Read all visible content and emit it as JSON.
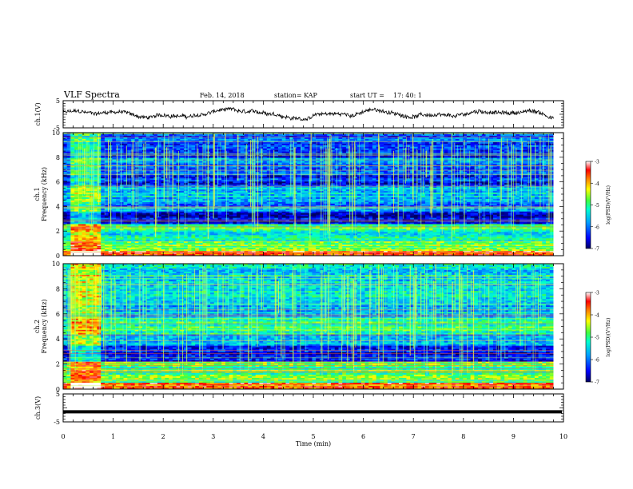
{
  "header": {
    "title": "VLF Spectra",
    "date": "Feb. 14, 2018",
    "station": "station= KAP",
    "start_label": "start  UT =",
    "start_time": "17: 40: 1"
  },
  "chart_data": [
    {
      "type": "line",
      "id": "ch1-waveform",
      "ylabel": "ch.1(V)",
      "ylim": [
        -5,
        5
      ],
      "yticks": [
        "5",
        "-5"
      ],
      "xlim": [
        0,
        10
      ],
      "note_values": "noisy waveform oscillating roughly between -1.5 and 1.5 V over 0–9.8 min",
      "series_color": "#000000"
    },
    {
      "type": "heatmap",
      "id": "ch1-spectrogram",
      "ylabel": "ch.1 Frequency (kHz)",
      "ylim": [
        0,
        10
      ],
      "yticks": [
        "0",
        "2",
        "4",
        "6",
        "8",
        "10"
      ],
      "xlim": [
        0,
        10
      ],
      "data_end_min": 9.8,
      "colorbar": {
        "label": "log(PSD)(V²/Hz)",
        "range": [
          -7,
          -3
        ],
        "ticks": [
          "-3",
          "-4",
          "-5",
          "-6",
          "-7"
        ]
      },
      "bands_khz": [
        {
          "f": [
            0.0,
            0.4
          ],
          "level": -3.5
        },
        {
          "f": [
            0.4,
            1.2
          ],
          "level": -4.6
        },
        {
          "f": [
            1.2,
            2.0
          ],
          "level": -5.2
        },
        {
          "f": [
            2.0,
            2.6
          ],
          "level": -4.9
        },
        {
          "f": [
            2.6,
            3.6
          ],
          "level": -6.6
        },
        {
          "f": [
            3.6,
            4.6
          ],
          "level": -5.9
        },
        {
          "f": [
            4.6,
            5.6
          ],
          "level": -5.6
        },
        {
          "f": [
            5.6,
            6.6
          ],
          "level": -6.4
        },
        {
          "f": [
            6.6,
            8.0
          ],
          "level": -6.0
        },
        {
          "f": [
            8.0,
            10.0
          ],
          "level": -6.2
        }
      ],
      "high_activity_interval_min": [
        0.15,
        0.75
      ]
    },
    {
      "type": "heatmap",
      "id": "ch2-spectrogram",
      "ylabel": "ch.2 Frequency (kHz)",
      "ylim": [
        0,
        10
      ],
      "yticks": [
        "0",
        "2",
        "4",
        "6",
        "8",
        "10"
      ],
      "xlim": [
        0,
        10
      ],
      "data_end_min": 9.8,
      "colorbar": {
        "label": "log(PSD)(V²/Hz)",
        "range": [
          -7,
          -3
        ],
        "ticks": [
          "-3",
          "-4",
          "-5",
          "-6",
          "-7"
        ]
      },
      "bands_khz": [
        {
          "f": [
            0.0,
            0.5
          ],
          "level": -3.8
        },
        {
          "f": [
            0.5,
            1.5
          ],
          "level": -4.8
        },
        {
          "f": [
            1.5,
            2.2
          ],
          "level": -5.0
        },
        {
          "f": [
            2.2,
            3.4
          ],
          "level": -6.5
        },
        {
          "f": [
            3.4,
            4.4
          ],
          "level": -5.7
        },
        {
          "f": [
            4.4,
            5.6
          ],
          "level": -5.1
        },
        {
          "f": [
            5.6,
            7.0
          ],
          "level": -5.6
        },
        {
          "f": [
            7.0,
            10.0
          ],
          "level": -5.4
        }
      ],
      "high_activity_interval_min": [
        0.15,
        0.75
      ]
    },
    {
      "type": "line",
      "id": "ch3-waveform",
      "ylabel": "ch.3(V)",
      "ylim": [
        -5,
        5
      ],
      "yticks": [
        "5",
        "-5"
      ],
      "xlim": [
        0,
        10
      ],
      "series_values_v": -1.4,
      "series_color": "#000000"
    }
  ],
  "xaxis": {
    "label": "Time (min)",
    "ticks": [
      "0",
      "1",
      "2",
      "3",
      "4",
      "5",
      "6",
      "7",
      "8",
      "9",
      "10"
    ]
  }
}
